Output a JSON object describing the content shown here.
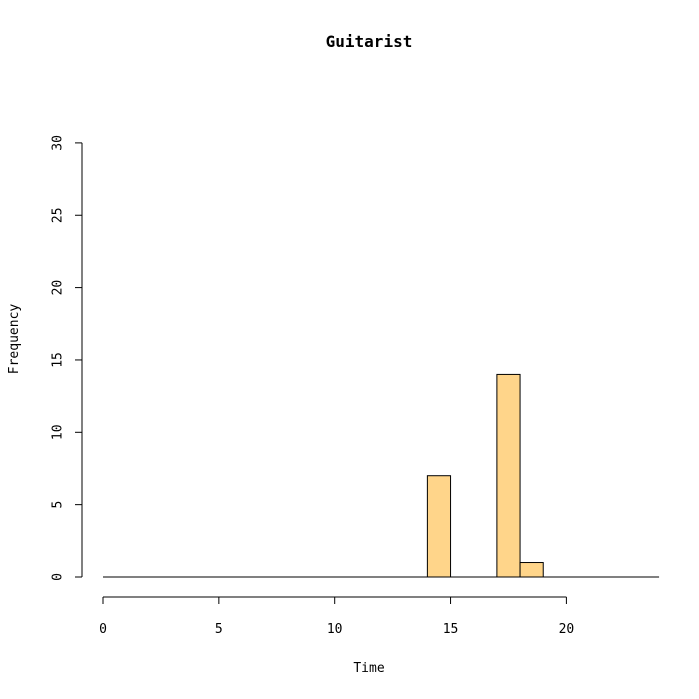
{
  "chart_data": {
    "type": "bar",
    "title": "Guitarist",
    "xlabel": "Time",
    "ylabel": "Frequency",
    "bar_color": "#FFD58A",
    "xlim": [
      0,
      24
    ],
    "ylim": [
      0,
      30
    ],
    "xticks": [
      0,
      5,
      10,
      15,
      20
    ],
    "yticks": [
      0,
      5,
      10,
      15,
      20,
      25,
      30
    ],
    "bins": [
      {
        "x0": 14,
        "x1": 15,
        "count": 7
      },
      {
        "x0": 17,
        "x1": 18,
        "count": 14
      },
      {
        "x0": 18,
        "x1": 19,
        "count": 1
      }
    ]
  }
}
